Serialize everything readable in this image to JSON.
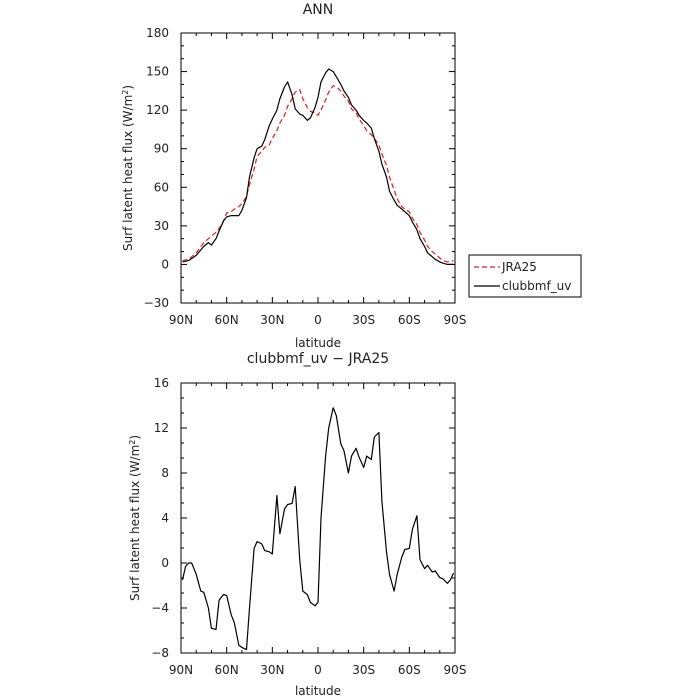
{
  "chart_data": [
    {
      "type": "line",
      "title": "ANN",
      "xlabel": "latitude",
      "ylabel_main": "Surf latent heat flux (W/m",
      "ylabel_sup": "2",
      "ylabel_tail": ")",
      "xlim": [
        -90,
        90
      ],
      "ylim": [
        -30,
        180
      ],
      "x_ticks": [
        -90,
        -60,
        -30,
        0,
        30,
        60,
        90
      ],
      "x_tick_labels": [
        "90N",
        "60N",
        "30N",
        "0",
        "30S",
        "60S",
        "90S"
      ],
      "y_ticks": [
        -30,
        0,
        30,
        60,
        90,
        120,
        150,
        180
      ],
      "y_tick_labels": [
        "−30",
        "0",
        "30",
        "60",
        "90",
        "120",
        "150",
        "180"
      ],
      "legend_position": "right",
      "series": [
        {
          "name": "JRA25",
          "color": "#e31a1c",
          "dash": "dashed",
          "x": [
            -89,
            -85,
            -80,
            -75,
            -72,
            -70,
            -67,
            -65,
            -62,
            -60,
            -57,
            -55,
            -52,
            -50,
            -47,
            -45,
            -42,
            -40,
            -37,
            -35,
            -32,
            -30,
            -27,
            -25,
            -22,
            -20,
            -17,
            -15,
            -12,
            -10,
            -7,
            -5,
            -2,
            0,
            2,
            5,
            7,
            10,
            12,
            15,
            17,
            20,
            22,
            25,
            27,
            30,
            32,
            35,
            37,
            40,
            42,
            45,
            47,
            50,
            52,
            55,
            57,
            60,
            62,
            65,
            67,
            70,
            72,
            75,
            77,
            80,
            82,
            85,
            89
          ],
          "y": [
            3,
            4,
            9,
            17,
            20,
            22,
            25,
            28,
            34,
            40,
            41,
            43,
            45,
            47,
            53,
            62,
            74,
            84,
            88,
            91,
            93,
            98,
            104,
            110,
            116,
            123,
            129,
            134,
            136,
            129,
            122,
            119,
            118,
            116,
            120,
            128,
            134,
            139,
            138,
            135,
            131,
            127,
            121,
            118,
            113,
            108,
            104,
            101,
            98,
            93,
            86,
            77,
            68,
            58,
            51,
            45,
            43,
            41,
            36,
            31,
            25,
            19,
            14,
            10,
            8,
            5,
            3,
            2,
            3
          ]
        },
        {
          "name": "clubbmf_uv",
          "color": "#000000",
          "dash": "solid",
          "x": [
            -89,
            -85,
            -80,
            -75,
            -72,
            -70,
            -67,
            -65,
            -62,
            -60,
            -57,
            -55,
            -52,
            -50,
            -47,
            -45,
            -42,
            -40,
            -37,
            -35,
            -32,
            -30,
            -27,
            -25,
            -22,
            -20,
            -17,
            -15,
            -12,
            -10,
            -7,
            -5,
            -2,
            0,
            2,
            5,
            7,
            10,
            12,
            15,
            17,
            20,
            22,
            25,
            27,
            30,
            32,
            35,
            37,
            40,
            42,
            45,
            47,
            50,
            52,
            55,
            57,
            60,
            62,
            65,
            67,
            70,
            72,
            75,
            77,
            80,
            82,
            85,
            89
          ],
          "y": [
            2,
            3,
            7,
            14,
            17,
            15,
            20,
            26,
            34,
            37,
            38,
            38,
            38,
            42,
            52,
            68,
            83,
            90,
            92,
            97,
            108,
            113,
            120,
            129,
            138,
            142,
            132,
            121,
            117,
            116,
            112,
            114,
            122,
            130,
            142,
            149,
            152,
            150,
            146,
            140,
            135,
            130,
            124,
            120,
            116,
            112,
            110,
            106,
            98,
            88,
            78,
            68,
            57,
            50,
            46,
            43,
            41,
            38,
            33,
            27,
            20,
            14,
            9,
            6,
            4,
            2,
            1,
            0,
            0
          ]
        }
      ]
    },
    {
      "type": "line",
      "title": "clubbmf_uv − JRA25",
      "xlabel": "latitude",
      "ylabel_main": "Surf latent heat flux (W/m",
      "ylabel_sup": "2",
      "ylabel_tail": ")",
      "xlim": [
        -90,
        90
      ],
      "ylim": [
        -8,
        16
      ],
      "x_ticks": [
        -90,
        -60,
        -30,
        0,
        30,
        60,
        90
      ],
      "x_tick_labels": [
        "90N",
        "60N",
        "30N",
        "0",
        "30S",
        "60S",
        "90S"
      ],
      "y_ticks": [
        -8,
        -4,
        0,
        4,
        8,
        12,
        16
      ],
      "y_tick_labels": [
        "−8",
        "−4",
        "0",
        "4",
        "8",
        "12",
        "16"
      ],
      "series": [
        {
          "color": "#000000",
          "dash": "solid",
          "x": [
            -89,
            -87,
            -85,
            -83,
            -80,
            -77,
            -75,
            -72,
            -70,
            -67,
            -65,
            -62,
            -60,
            -57,
            -55,
            -52,
            -50,
            -47,
            -45,
            -42,
            -40,
            -37,
            -35,
            -32,
            -30,
            -27,
            -25,
            -22,
            -20,
            -17,
            -15,
            -12,
            -10,
            -7,
            -5,
            -2,
            0,
            2,
            5,
            7,
            10,
            12,
            15,
            17,
            20,
            22,
            25,
            27,
            30,
            32,
            35,
            37,
            40,
            42,
            45,
            47,
            50,
            52,
            55,
            57,
            60,
            62,
            65,
            67,
            70,
            72,
            75,
            77,
            80,
            82,
            85,
            87,
            89
          ],
          "y": [
            -1.5,
            -0.3,
            0.0,
            0.0,
            -1.0,
            -2.5,
            -2.6,
            -4.0,
            -5.8,
            -5.9,
            -3.3,
            -2.8,
            -2.9,
            -4.6,
            -5.3,
            -7.3,
            -7.5,
            -7.7,
            -4.0,
            1.3,
            1.9,
            1.7,
            1.1,
            1.0,
            0.8,
            6.0,
            2.6,
            4.8,
            5.2,
            5.3,
            6.8,
            0.3,
            -2.5,
            -2.8,
            -3.5,
            -3.8,
            -3.5,
            4.0,
            9.5,
            12.0,
            13.8,
            13.1,
            10.6,
            10.0,
            8.0,
            9.5,
            10.2,
            9.4,
            8.5,
            9.5,
            9.2,
            11.2,
            11.6,
            5.5,
            1.0,
            -1.0,
            -2.5,
            -1.0,
            0.5,
            1.2,
            1.3,
            3.0,
            4.2,
            0.3,
            -0.5,
            -0.2,
            -0.8,
            -0.7,
            -1.3,
            -1.4,
            -1.8,
            -1.5,
            -0.9
          ]
        }
      ]
    }
  ]
}
